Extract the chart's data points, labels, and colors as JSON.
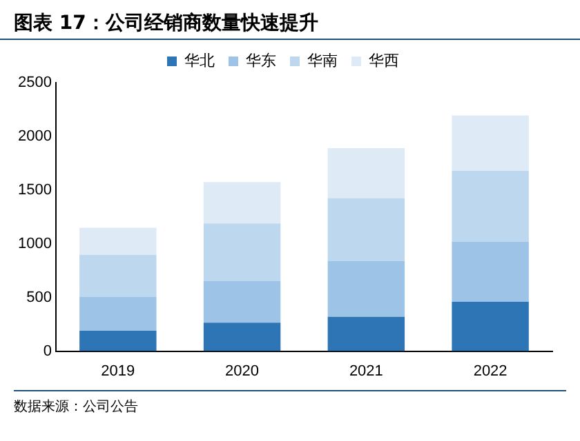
{
  "chart_data": {
    "type": "bar",
    "title": "图表 17：公司经销商数量快速提升",
    "categories": [
      "2019",
      "2020",
      "2021",
      "2022"
    ],
    "stacked": true,
    "legend": "top",
    "grid": false,
    "ylim": [
      0,
      2500
    ],
    "yticks": [
      0,
      500,
      1000,
      1500,
      2000,
      2500
    ],
    "series": [
      {
        "name": "华北",
        "color": "#2e75b6",
        "values": [
          190,
          265,
          320,
          460
        ]
      },
      {
        "name": "华东",
        "color": "#9dc3e6",
        "values": [
          315,
          390,
          520,
          560
        ]
      },
      {
        "name": "华南",
        "color": "#bdd7ee",
        "values": [
          390,
          535,
          585,
          660
        ]
      },
      {
        "name": "华西",
        "color": "#deebf7",
        "values": [
          255,
          385,
          465,
          515
        ]
      }
    ],
    "annotations": [
      "数据来源：公司公告"
    ]
  }
}
